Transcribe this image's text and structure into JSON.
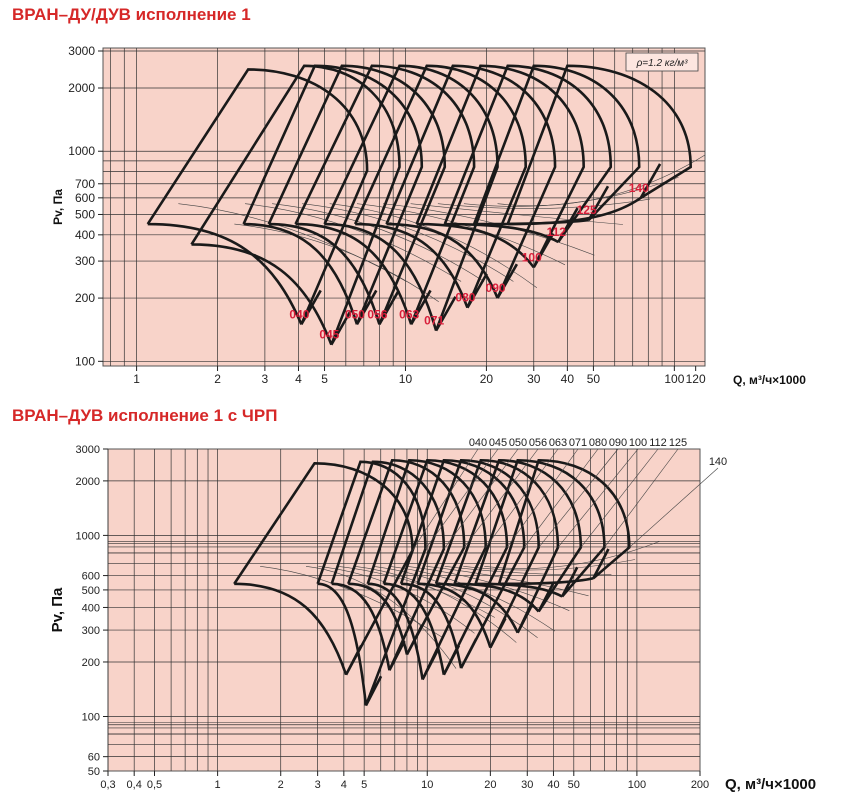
{
  "chart_data": [
    {
      "type": "line",
      "title": "ВРАН–ДУ/ДУВ исполнение 1",
      "xlabel": "Q, м³/ч×1000",
      "ylabel": "Pv, Па",
      "x_scale": "log",
      "y_scale": "log",
      "xlim": [
        0.75,
        130
      ],
      "ylim": [
        95,
        3100
      ],
      "x_ticks": [
        1,
        2,
        3,
        4,
        5,
        10,
        20,
        30,
        40,
        50,
        100,
        120
      ],
      "x_tick_labels": [
        "1",
        "2",
        "3",
        "4",
        "5",
        "10",
        "20",
        "30",
        "40",
        "50",
        "100",
        "120"
      ],
      "y_ticks": [
        100,
        200,
        300,
        400,
        500,
        600,
        700,
        1000,
        2000,
        3000
      ],
      "y_tick_labels": [
        "100",
        "200",
        "300",
        "400",
        "500",
        "600",
        "700",
        "1000",
        "2000",
        "3000"
      ],
      "note": "ρ=1.2 кг/м³",
      "grid": true,
      "series": [
        {
          "name": "040",
          "q_left": 1.1,
          "q_peak": 2.6,
          "q_right": 7.2,
          "q_min": 4.1,
          "p_top": 2450,
          "p_knee": 450,
          "p_min": 150
        },
        {
          "name": "045",
          "q_left": 1.6,
          "q_peak": 4.2,
          "q_right": 9.5,
          "q_min": 5.3,
          "p_top": 2550,
          "p_knee": 360,
          "p_min": 120
        },
        {
          "name": "050",
          "q_left": 2.5,
          "q_peak": 4.6,
          "q_right": 11.5,
          "q_min": 6.6,
          "p_top": 2550,
          "p_knee": 450,
          "p_min": 150
        },
        {
          "name": "056",
          "q_left": 3.1,
          "q_peak": 5.8,
          "q_right": 14.0,
          "q_min": 8.0,
          "p_top": 2550,
          "p_knee": 450,
          "p_min": 150
        },
        {
          "name": "063",
          "q_left": 3.9,
          "q_peak": 7.5,
          "q_right": 18.0,
          "q_min": 10.5,
          "p_top": 2550,
          "p_knee": 450,
          "p_min": 150
        },
        {
          "name": "071",
          "q_left": 5.0,
          "q_peak": 9.5,
          "q_right": 22.0,
          "q_min": 13.0,
          "p_top": 2550,
          "p_knee": 450,
          "p_min": 140
        },
        {
          "name": "080",
          "q_left": 6.5,
          "q_peak": 12.0,
          "q_right": 28.0,
          "q_min": 17.0,
          "p_top": 2550,
          "p_knee": 450,
          "p_min": 180
        },
        {
          "name": "090",
          "q_left": 8.5,
          "q_peak": 15.0,
          "q_right": 36.0,
          "q_min": 22.0,
          "p_top": 2550,
          "p_knee": 450,
          "p_min": 200
        },
        {
          "name": "100",
          "q_left": 11.0,
          "q_peak": 19.0,
          "q_right": 46.0,
          "q_min": 30.0,
          "p_top": 2550,
          "p_knee": 450,
          "p_min": 280
        },
        {
          "name": "112",
          "q_left": 14.0,
          "q_peak": 24.0,
          "q_right": 58.0,
          "q_min": 37.0,
          "p_top": 2550,
          "p_knee": 450,
          "p_min": 370
        },
        {
          "name": "125",
          "q_left": 18.0,
          "q_peak": 30.0,
          "q_right": 74.0,
          "q_min": 48.0,
          "p_top": 2550,
          "p_knee": 450,
          "p_min": 470
        },
        {
          "name": "140",
          "q_left": 24.0,
          "q_peak": 40.0,
          "q_right": 115.0,
          "q_min": 75.0,
          "p_top": 2550,
          "p_knee": 450,
          "p_min": 600
        }
      ]
    },
    {
      "type": "line",
      "title": "ВРАН–ДУВ исполнение 1 с ЧРП",
      "xlabel": "Q, м³/ч×1000",
      "ylabel": "Pv, Па",
      "x_scale": "log",
      "y_scale": "log",
      "xlim": [
        0.3,
        200
      ],
      "ylim": [
        50,
        3000
      ],
      "x_ticks": [
        0.3,
        0.4,
        0.5,
        1,
        2,
        3,
        4,
        5,
        10,
        20,
        30,
        40,
        50,
        100,
        200
      ],
      "x_tick_labels": [
        "0,3",
        "0,4",
        "0,5",
        "1",
        "2",
        "3",
        "4",
        "5",
        "10",
        "20",
        "30",
        "40",
        "50",
        "100",
        "200"
      ],
      "y_ticks": [
        50,
        60,
        100,
        200,
        300,
        400,
        500,
        600,
        1000,
        2000,
        3000
      ],
      "y_tick_labels": [
        "50",
        "60",
        "100",
        "200",
        "300",
        "400",
        "500",
        "600",
        "1000",
        "2000",
        "3000"
      ],
      "grid": true,
      "series_labels": [
        "040",
        "045",
        "050",
        "056",
        "063",
        "071",
        "080",
        "090",
        "100",
        "112",
        "125",
        "140"
      ],
      "series": [
        {
          "name": "040",
          "q_left": 1.2,
          "q_peak": 2.9,
          "q_right": 8.5,
          "q_min": 4.1,
          "p_top": 2500,
          "p_knee": 540,
          "p_min": 170
        },
        {
          "name": "045",
          "q_left": 3.0,
          "q_peak": 4.8,
          "q_right": 9.8,
          "q_min": 5.1,
          "p_top": 2550,
          "p_knee": 540,
          "p_min": 115
        },
        {
          "name": "050",
          "q_left": 3.5,
          "q_peak": 5.5,
          "q_right": 12.0,
          "q_min": 6.6,
          "p_top": 2550,
          "p_knee": 540,
          "p_min": 180
        },
        {
          "name": "056",
          "q_left": 4.2,
          "q_peak": 6.8,
          "q_right": 15.0,
          "q_min": 8.0,
          "p_top": 2600,
          "p_knee": 540,
          "p_min": 220
        },
        {
          "name": "063",
          "q_left": 5.2,
          "q_peak": 8.2,
          "q_right": 19.0,
          "q_min": 9.5,
          "p_top": 2600,
          "p_knee": 540,
          "p_min": 160
        },
        {
          "name": "071",
          "q_left": 6.2,
          "q_peak": 10.0,
          "q_right": 24.0,
          "q_min": 12.0,
          "p_top": 2600,
          "p_knee": 540,
          "p_min": 170
        },
        {
          "name": "080",
          "q_left": 7.5,
          "q_peak": 12.0,
          "q_right": 29.0,
          "q_min": 14.5,
          "p_top": 2600,
          "p_knee": 540,
          "p_min": 185
        },
        {
          "name": "090",
          "q_left": 9.0,
          "q_peak": 14.5,
          "q_right": 34.0,
          "q_min": 20.0,
          "p_top": 2600,
          "p_knee": 540,
          "p_min": 240
        },
        {
          "name": "100",
          "q_left": 11.0,
          "q_peak": 18.0,
          "q_right": 42.0,
          "q_min": 27.0,
          "p_top": 2600,
          "p_knee": 540,
          "p_min": 290
        },
        {
          "name": "112",
          "q_left": 13.5,
          "q_peak": 22.0,
          "q_right": 54.0,
          "q_min": 34.0,
          "p_top": 2600,
          "p_knee": 540,
          "p_min": 380
        },
        {
          "name": "125",
          "q_left": 17.0,
          "q_peak": 27.0,
          "q_right": 70.0,
          "q_min": 44.0,
          "p_top": 2600,
          "p_knee": 540,
          "p_min": 460
        },
        {
          "name": "140",
          "q_left": 22.0,
          "q_peak": 34.0,
          "q_right": 92.0,
          "q_min": 62.0,
          "p_top": 2600,
          "p_knee": 540,
          "p_min": 580
        }
      ]
    }
  ],
  "colors": {
    "plot_background": "#f8d3c9",
    "grid": "#333333",
    "curve": "#1a1a1a",
    "title": "#d62828",
    "size_label": "#d81e3a"
  }
}
